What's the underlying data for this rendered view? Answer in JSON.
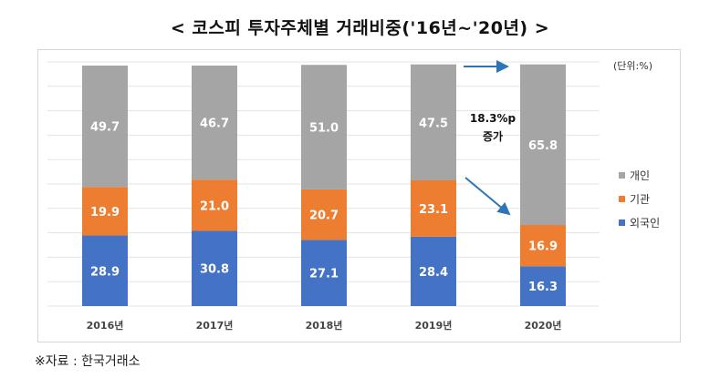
{
  "title": "< 코스피 투자주체별 거래비중('16년~'20년) >",
  "unit_label": "(단위:%)",
  "annotation": {
    "line1": "18.3%p",
    "line2": "증가"
  },
  "source": "※자료 : 한국거래소",
  "chart_data": {
    "type": "bar",
    "stacked": true,
    "categories": [
      "2016년",
      "2017년",
      "2018년",
      "2019년",
      "2020년"
    ],
    "series": [
      {
        "name": "외국인",
        "color": "#4472c4",
        "values": [
          28.9,
          30.8,
          27.1,
          28.4,
          16.3
        ]
      },
      {
        "name": "기관",
        "color": "#ed7d31",
        "values": [
          19.9,
          21.0,
          20.7,
          23.1,
          16.9
        ]
      },
      {
        "name": "개인",
        "color": "#a5a5a5",
        "values": [
          49.7,
          46.7,
          51.0,
          47.5,
          65.8
        ]
      }
    ],
    "ylim": [
      0,
      100
    ],
    "grid": true,
    "legend_position": "right"
  }
}
